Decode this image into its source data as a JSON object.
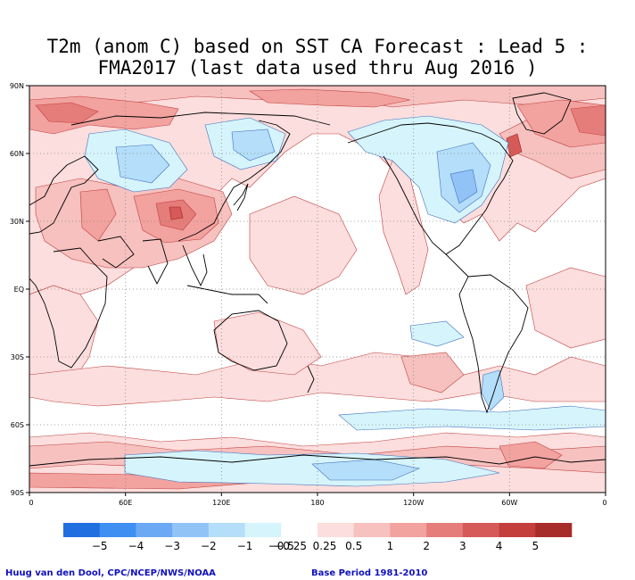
{
  "title": {
    "line1": "T2m (anom C) based on SST CA Forecast : Lead 5 :",
    "line2": "FMA2017 (last data used thru Aug 2016 )"
  },
  "map": {
    "lat_labels": [
      "90N",
      "60N",
      "30N",
      "EQ",
      "30S",
      "60S",
      "90S"
    ],
    "lon_labels": [
      "0",
      "60E",
      "120E",
      "180",
      "120W",
      "60W",
      "0"
    ],
    "land_color": "#000000",
    "grid_style": "dotted"
  },
  "colorbar": {
    "labels": [
      "−5",
      "−4",
      "−3",
      "−2",
      "−1",
      "−0.5",
      "−0.25",
      "0.25",
      "0.5",
      "1",
      "2",
      "3",
      "4",
      "5"
    ],
    "colors": [
      "#1f6fe0",
      "#3f8ff2",
      "#6ca9f5",
      "#92c3f7",
      "#b4def9",
      "#d6f4fb",
      "#ffffff",
      "#fbdedd",
      "#f6c1bf",
      "#f2a29f",
      "#e57d7a",
      "#d65a57",
      "#c43e3b",
      "#a72d2b"
    ]
  },
  "credits": {
    "left": "Huug van den Dool, CPC/NCEP/NWS/NOAA",
    "right": "Base Period 1981-2010"
  }
}
